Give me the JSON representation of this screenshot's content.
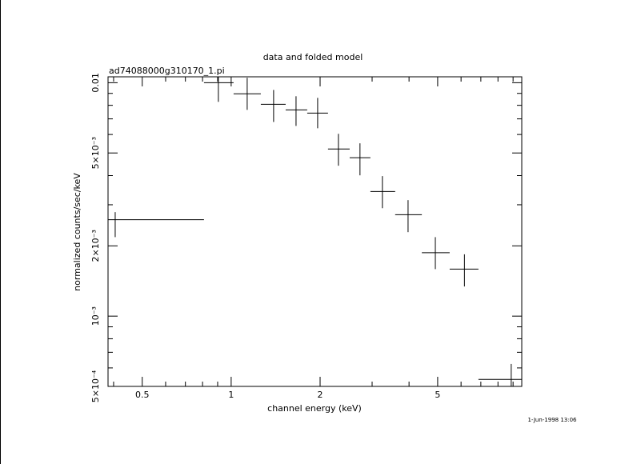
{
  "chart_data": {
    "type": "scatter",
    "title": "data and folded model",
    "subtitle": "ad74088000g310170_1.pi",
    "xlabel": "channel energy (keV)",
    "ylabel": "normalized counts/sec/keV",
    "footer": "1-Jun-1998 13:06",
    "xscale": "log",
    "yscale": "log",
    "color": "#000000",
    "xlim": [
      0.383,
      9.63
    ],
    "ylim": [
      0.0005,
      0.0106
    ],
    "xticks": [
      0.5,
      1,
      2,
      5
    ],
    "xticks_minor": [
      0.4,
      0.6,
      0.7,
      0.8,
      0.9,
      3,
      4,
      6,
      7,
      8,
      9
    ],
    "yticks": [
      {
        "value": 0.0005,
        "label": "5×10⁻⁴"
      },
      {
        "value": 0.001,
        "label": "10⁻³"
      },
      {
        "value": 0.002,
        "label": "2×10⁻³"
      },
      {
        "value": 0.005,
        "label": "5×10⁻³"
      },
      0.01
    ],
    "yticks_minor": [
      0.0006,
      0.0007,
      0.0008,
      0.0009,
      0.003,
      0.004,
      0.006,
      0.007,
      0.008,
      0.009
    ],
    "x": [
      0.405,
      0.905,
      1.133,
      1.392,
      1.658,
      1.962,
      2.307,
      2.729,
      3.25,
      3.97,
      4.91,
      6.16,
      8.87
    ],
    "xlo": [
      0.34,
      0.809,
      1.019,
      1.26,
      1.529,
      1.809,
      2.127,
      2.518,
      2.96,
      3.59,
      4.42,
      5.49,
      6.87
    ],
    "xhi": [
      0.809,
      1.019,
      1.26,
      1.529,
      1.809,
      2.127,
      2.518,
      2.96,
      3.59,
      4.42,
      5.49,
      6.87,
      9.63
    ],
    "y": [
      0.00259,
      0.01,
      0.00896,
      0.00808,
      0.00765,
      0.00741,
      0.0052,
      0.00477,
      0.00342,
      0.00272,
      0.00187,
      0.00159,
      0.000536
    ],
    "ylo": [
      0.00218,
      0.00828,
      0.00765,
      0.00679,
      0.00653,
      0.00638,
      0.00441,
      0.00401,
      0.0029,
      0.00229,
      0.00159,
      0.00134,
      0.00046
    ],
    "yhi": [
      0.00279,
      0.0106,
      0.0105,
      0.00931,
      0.00875,
      0.00861,
      0.00604,
      0.0055,
      0.00398,
      0.00314,
      0.00218,
      0.00184,
      0.000624
    ]
  }
}
